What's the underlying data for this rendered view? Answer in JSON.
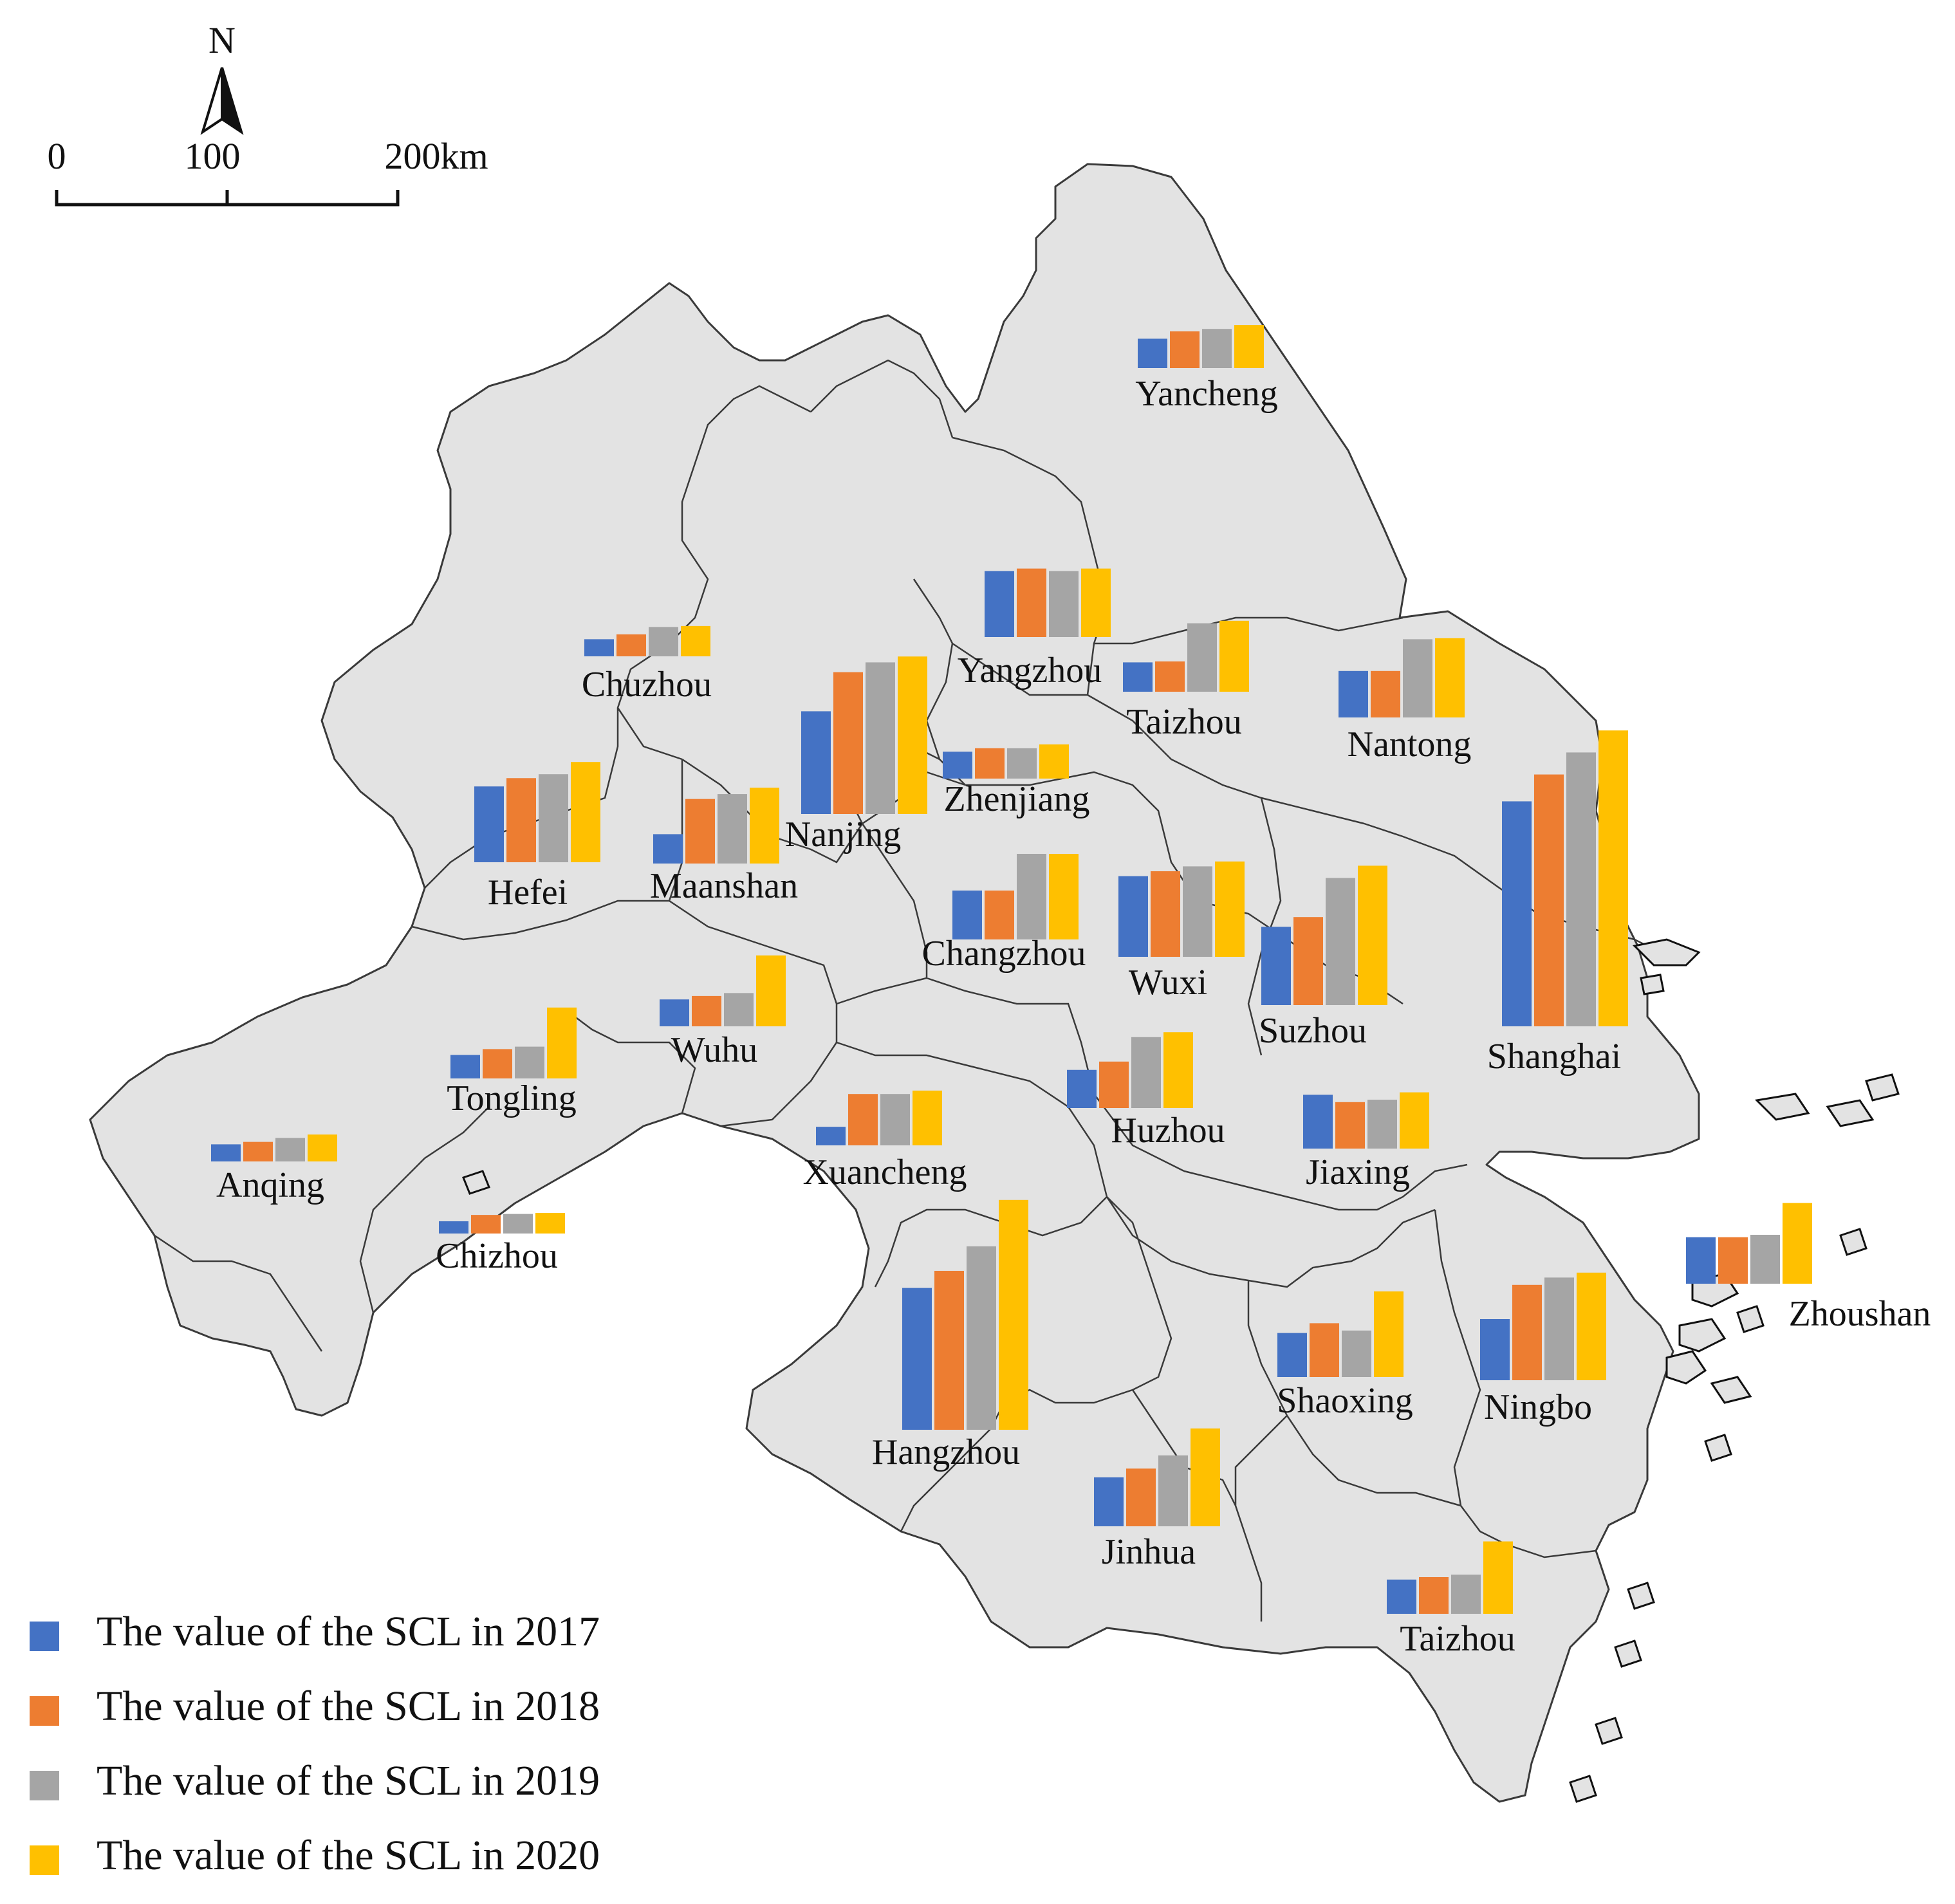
{
  "colors": {
    "y2017": "#4472c4",
    "y2018": "#ed7d31",
    "y2019": "#a5a5a5",
    "y2020": "#ffc000"
  },
  "scale_bar": {
    "north": "N",
    "ticks": [
      "0",
      "100",
      "200km"
    ]
  },
  "legend": [
    {
      "label": "The value of the SCL in 2017",
      "color": "#4472c4"
    },
    {
      "label": "The value of the SCL in 2018",
      "color": "#ed7d31"
    },
    {
      "label": "The value of the SCL in 2019",
      "color": "#a5a5a5"
    },
    {
      "label": "The value of the SCL in 2020",
      "color": "#ffc000"
    }
  ],
  "chart_data": {
    "type": "bar",
    "series_names": [
      "The value of the SCL in 2017",
      "The value of the SCL in 2018",
      "The value of the SCL in 2019",
      "The value of the SCL in 2020"
    ],
    "cities": [
      {
        "name": "Yancheng",
        "values": [
          0.06,
          0.075,
          0.08,
          0.088
        ]
      },
      {
        "name": "Yangzhou",
        "values": [
          0.135,
          0.14,
          0.135,
          0.14
        ]
      },
      {
        "name": "Taizhou",
        "values": [
          0.06,
          0.062,
          0.14,
          0.145
        ]
      },
      {
        "name": "Nantong",
        "values": [
          0.095,
          0.095,
          0.16,
          0.162
        ]
      },
      {
        "name": "Chuzhou",
        "values": [
          0.035,
          0.045,
          0.06,
          0.062
        ]
      },
      {
        "name": "Nanjing",
        "values": [
          0.21,
          0.29,
          0.31,
          0.322
        ]
      },
      {
        "name": "Zhenjiang",
        "values": [
          0.055,
          0.062,
          0.062,
          0.07
        ]
      },
      {
        "name": "Hefei",
        "values": [
          0.155,
          0.172,
          0.18,
          0.205
        ]
      },
      {
        "name": "Maanshan",
        "values": [
          0.06,
          0.132,
          0.142,
          0.155
        ]
      },
      {
        "name": "Changzhou",
        "values": [
          0.1,
          0.1,
          0.175,
          0.175
        ]
      },
      {
        "name": "Wuxi",
        "values": [
          0.165,
          0.175,
          0.185,
          0.195
        ]
      },
      {
        "name": "Suzhou",
        "values": [
          0.16,
          0.18,
          0.26,
          0.285
        ]
      },
      {
        "name": "Shanghai",
        "values": [
          0.46,
          0.515,
          0.56,
          0.605
        ]
      },
      {
        "name": "Tongling",
        "values": [
          0.048,
          0.06,
          0.065,
          0.145
        ]
      },
      {
        "name": "Wuhu",
        "values": [
          0.055,
          0.062,
          0.068,
          0.145
        ]
      },
      {
        "name": "Anqing",
        "values": [
          0.035,
          0.04,
          0.048,
          0.055
        ]
      },
      {
        "name": "Chizhou",
        "values": [
          0.025,
          0.038,
          0.04,
          0.042
        ]
      },
      {
        "name": "Xuancheng",
        "values": [
          0.038,
          0.105,
          0.105,
          0.112
        ]
      },
      {
        "name": "Huzhou",
        "values": [
          0.078,
          0.095,
          0.145,
          0.155
        ]
      },
      {
        "name": "Jiaxing",
        "values": [
          0.11,
          0.095,
          0.1,
          0.115
        ]
      },
      {
        "name": "Hangzhou",
        "values": [
          0.29,
          0.325,
          0.375,
          0.47
        ]
      },
      {
        "name": "Shaoxing",
        "values": [
          0.09,
          0.11,
          0.095,
          0.175
        ]
      },
      {
        "name": "Ningbo",
        "values": [
          0.125,
          0.195,
          0.21,
          0.22
        ]
      },
      {
        "name": "Zhoushan",
        "values": [
          0.095,
          0.095,
          0.1,
          0.165
        ]
      },
      {
        "name": "Jinhua",
        "values": [
          0.1,
          0.118,
          0.145,
          0.2
        ]
      },
      {
        "name": "Taizhou",
        "values": [
          0.07,
          0.075,
          0.08,
          0.148
        ]
      }
    ]
  }
}
